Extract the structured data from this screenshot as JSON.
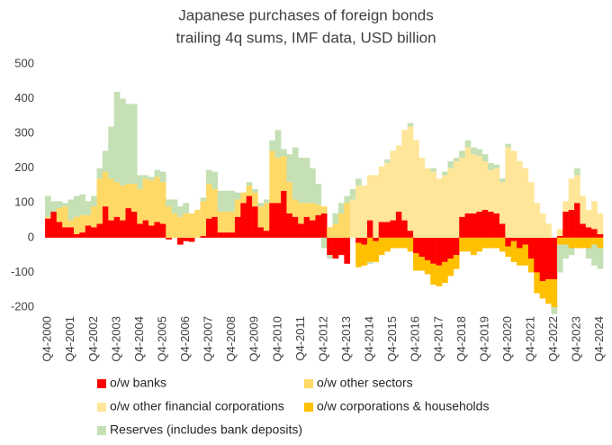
{
  "chart_data": {
    "type": "stacked_bar",
    "title": [
      "Japanese purchases of foreign bonds",
      "trailing 4q sums, IMF data, USD billion"
    ],
    "categories": [
      "Q4-2000",
      null,
      null,
      null,
      "Q4-2001",
      null,
      null,
      null,
      "Q4-2002",
      null,
      null,
      null,
      "Q4-2003",
      null,
      null,
      null,
      "Q4-2004",
      null,
      null,
      null,
      "Q4-2005",
      null,
      null,
      null,
      "Q4-2006",
      null,
      null,
      null,
      "Q4-2007",
      null,
      null,
      null,
      "Q4-2008",
      null,
      null,
      null,
      "Q4-2009",
      null,
      null,
      null,
      "Q4-2010",
      null,
      null,
      null,
      "Q4-2011",
      null,
      null,
      null,
      "Q4-2012",
      null,
      null,
      null,
      "Q4-2013",
      null,
      null,
      null,
      "Q4-2014",
      null,
      null,
      null,
      "Q4-2015",
      null,
      null,
      null,
      "Q4-2016",
      null,
      null,
      null,
      "Q4-2017",
      null,
      null,
      null,
      "Q4-2018",
      null,
      null,
      null,
      "Q4-2019",
      null,
      null,
      null,
      "Q4-2020",
      null,
      null,
      null,
      "Q4-2021",
      null,
      null,
      null,
      "Q4-2022",
      null,
      null,
      null,
      "Q4-2023",
      null,
      null,
      null,
      "Q4-2024"
    ],
    "series": [
      {
        "name": "o/w banks",
        "color": "#ff0000",
        "values": [
          55,
          75,
          45,
          30,
          30,
          10,
          15,
          35,
          30,
          40,
          90,
          50,
          60,
          50,
          85,
          75,
          40,
          50,
          35,
          45,
          40,
          -5,
          0,
          -20,
          -10,
          -12,
          0,
          5,
          55,
          60,
          15,
          15,
          15,
          60,
          100,
          120,
          90,
          30,
          20,
          100,
          100,
          135,
          70,
          60,
          40,
          60,
          50,
          65,
          70,
          -50,
          -60,
          -50,
          -75,
          0,
          -15,
          -20,
          50,
          -10,
          45,
          45,
          50,
          75,
          50,
          20,
          -45,
          -55,
          -65,
          -75,
          -80,
          -70,
          -60,
          -50,
          60,
          70,
          70,
          75,
          80,
          75,
          70,
          40,
          -25,
          -10,
          -30,
          -20,
          -60,
          -100,
          -125,
          -120,
          -120,
          5,
          75,
          80,
          100,
          40,
          30,
          25,
          10
        ]
      },
      {
        "name": "o/w other sectors",
        "color": "#ffd966",
        "values": [
          5,
          0,
          40,
          60,
          20,
          50,
          50,
          30,
          60,
          130,
          100,
          120,
          100,
          100,
          70,
          80,
          100,
          120,
          130,
          130,
          120,
          90,
          70,
          60,
          70,
          70,
          80,
          100,
          100,
          80,
          60,
          60,
          60,
          50,
          30,
          30,
          40,
          60,
          80,
          150,
          130,
          100,
          90,
          50,
          60,
          40,
          50,
          30,
          20,
          30,
          40,
          70,
          100,
          null,
          null,
          null,
          null,
          null,
          null,
          null,
          null,
          null,
          null,
          null,
          null,
          null,
          null,
          null,
          null,
          null,
          null,
          null,
          null,
          null,
          null,
          null,
          null,
          null,
          null,
          null,
          null,
          null,
          null,
          null,
          null,
          null,
          null,
          null,
          null,
          null,
          null,
          null,
          null,
          null,
          null,
          null,
          null
        ]
      },
      {
        "name": "o/w other financial corporations",
        "color": "#ffe699",
        "values": [
          null,
          null,
          null,
          null,
          null,
          null,
          null,
          null,
          null,
          null,
          null,
          null,
          null,
          null,
          null,
          null,
          null,
          null,
          null,
          null,
          null,
          null,
          null,
          null,
          null,
          null,
          null,
          null,
          null,
          null,
          null,
          null,
          null,
          null,
          null,
          null,
          null,
          null,
          null,
          null,
          null,
          null,
          null,
          null,
          null,
          null,
          null,
          null,
          null,
          null,
          null,
          null,
          null,
          110,
          150,
          150,
          130,
          180,
          160,
          170,
          200,
          190,
          260,
          300,
          280,
          230,
          200,
          190,
          170,
          180,
          200,
          220,
          170,
          190,
          170,
          160,
          140,
          120,
          130,
          120,
          260,
          250,
          220,
          200,
          160,
          100,
          70,
          40,
          0,
          20,
          30,
          90,
          80,
          80,
          50,
          80,
          60
        ]
      },
      {
        "name": "o/w corporations & households",
        "color": "#ffc000",
        "values": [
          null,
          null,
          null,
          null,
          null,
          null,
          null,
          null,
          null,
          null,
          null,
          null,
          null,
          null,
          null,
          null,
          null,
          null,
          null,
          null,
          null,
          null,
          null,
          null,
          null,
          null,
          null,
          null,
          null,
          null,
          null,
          null,
          null,
          null,
          null,
          null,
          null,
          null,
          null,
          null,
          null,
          null,
          null,
          null,
          null,
          null,
          null,
          null,
          null,
          null,
          null,
          null,
          null,
          0,
          -70,
          -60,
          -70,
          -60,
          -50,
          -40,
          -30,
          -30,
          -30,
          -40,
          -50,
          -40,
          -40,
          -60,
          -60,
          -60,
          -50,
          -40,
          -40,
          -40,
          -50,
          -40,
          -30,
          -30,
          -30,
          -40,
          -30,
          -60,
          -50,
          -60,
          -40,
          -60,
          -50,
          -70,
          -80,
          -20,
          -20,
          -30,
          -30,
          -30,
          -30,
          -20,
          -30
        ]
      },
      {
        "name": "Reserves (includes bank deposits)",
        "color": "#c5e0b4",
        "values": [
          60,
          30,
          20,
          10,
          60,
          60,
          60,
          40,
          30,
          30,
          60,
          150,
          260,
          250,
          230,
          230,
          40,
          10,
          10,
          20,
          30,
          20,
          40,
          30,
          30,
          0,
          0,
          10,
          40,
          50,
          60,
          60,
          60,
          20,
          0,
          10,
          10,
          10,
          10,
          30,
          80,
          20,
          80,
          150,
          130,
          130,
          100,
          60,
          -30,
          -10,
          30,
          30,
          20,
          30,
          20,
          0,
          -5,
          0,
          0,
          10,
          0,
          0,
          0,
          10,
          0,
          0,
          0,
          10,
          0,
          10,
          20,
          10,
          20,
          20,
          20,
          20,
          20,
          20,
          10,
          10,
          10,
          0,
          0,
          0,
          0,
          0,
          0,
          0,
          -20,
          -80,
          -40,
          -20,
          20,
          0,
          -30,
          -60,
          -60
        ]
      }
    ],
    "ylim": [
      -200,
      500
    ],
    "yticks": [
      -200,
      -100,
      0,
      100,
      200,
      300,
      400,
      500
    ],
    "legend": "bottom"
  }
}
